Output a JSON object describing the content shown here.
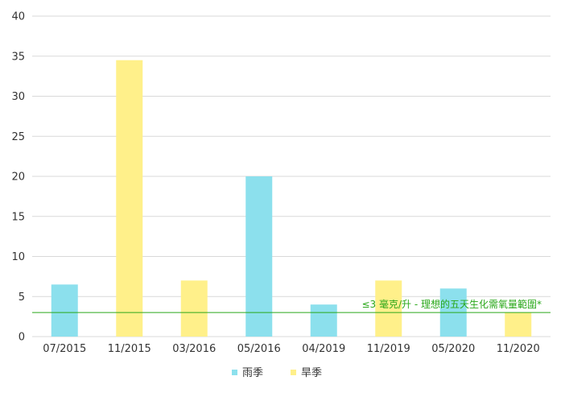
{
  "chart_data": {
    "type": "bar",
    "categories": [
      "07/2015",
      "11/2015",
      "03/2016",
      "05/2016",
      "04/2019",
      "11/2019",
      "05/2020",
      "11/2020"
    ],
    "season_legend": {
      "wet": {
        "name": "雨季",
        "color": "#8ce0ed"
      },
      "dry": {
        "name": "旱季",
        "color": "#fff08a"
      }
    },
    "points": [
      {
        "category": "07/2015",
        "value": 6.5,
        "season": "wet"
      },
      {
        "category": "11/2015",
        "value": 34.5,
        "season": "dry"
      },
      {
        "category": "03/2016",
        "value": 7,
        "season": "dry"
      },
      {
        "category": "05/2016",
        "value": 20,
        "season": "wet"
      },
      {
        "category": "04/2019",
        "value": 4,
        "season": "wet"
      },
      {
        "category": "11/2019",
        "value": 7,
        "season": "dry"
      },
      {
        "category": "05/2020",
        "value": 6,
        "season": "wet"
      },
      {
        "category": "11/2020",
        "value": 3,
        "season": "dry"
      }
    ],
    "ylim": [
      0,
      40
    ],
    "yticks": [
      0,
      5,
      10,
      15,
      20,
      25,
      30,
      35,
      40
    ],
    "reference_line": {
      "value": 3,
      "label": "≤3 毫克/升 - 理想的五天生化需氧量範圍*",
      "color": "#2aa81a"
    },
    "grid": true,
    "legend_position": "bottom-center"
  }
}
